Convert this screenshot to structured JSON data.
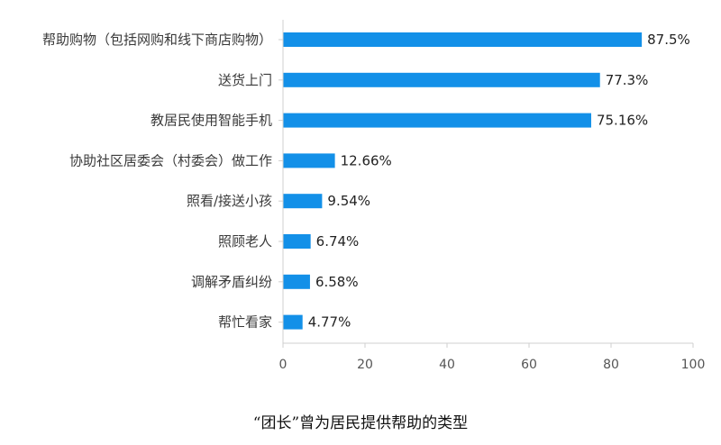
{
  "chart_data": {
    "type": "bar",
    "orientation": "horizontal",
    "categories": [
      "帮助购物（包括网购和线下商店购物）",
      "送货上门",
      "教居民使用智能手机",
      "协助社区居委会（村委会）做工作",
      "照看/接送小孩",
      "照顾老人",
      "调解矛盾纠纷",
      "帮忙看家"
    ],
    "values": [
      87.5,
      77.3,
      75.16,
      12.66,
      9.54,
      6.74,
      6.58,
      4.77
    ],
    "value_labels": [
      "87.5%",
      "77.3%",
      "75.16%",
      "12.66%",
      "9.54%",
      "6.74%",
      "6.58%",
      "4.77%"
    ],
    "xlim": [
      0,
      100
    ],
    "x_ticks": [
      0,
      20,
      40,
      60,
      80,
      100
    ],
    "x_tick_labels": [
      "0",
      "20",
      "40",
      "60",
      "80",
      "100"
    ],
    "grid": false,
    "legend": "none",
    "caption": "“团长”曾为居民提供帮助的类型"
  },
  "colors": {
    "bar": "#1390e8",
    "axis": "#cfcfcf"
  }
}
